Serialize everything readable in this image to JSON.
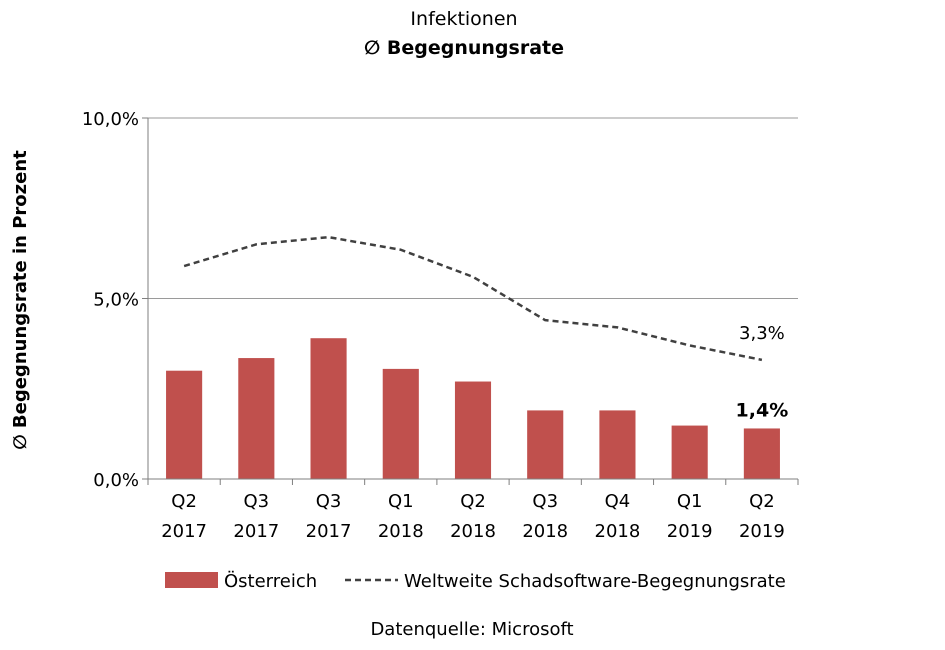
{
  "chart_data": {
    "type": "bar",
    "title": "Infektionen",
    "subtitle": "∅ Begegnungsrate",
    "ylabel": "∅ Begegnungsrate in Prozent",
    "xlabel": "",
    "ylim": [
      0,
      10
    ],
    "yticks": [
      "0,0%",
      "5,0%",
      "10,0%"
    ],
    "grid": true,
    "legend_position": "bottom",
    "categories": [
      [
        "Q2",
        "2017"
      ],
      [
        "Q3",
        "2017"
      ],
      [
        "Q3",
        "2017"
      ],
      [
        "Q1",
        "2018"
      ],
      [
        "Q2",
        "2018"
      ],
      [
        "Q3",
        "2018"
      ],
      [
        "Q4",
        "2018"
      ],
      [
        "Q1",
        "2019"
      ],
      [
        "Q2",
        "2019"
      ]
    ],
    "series": [
      {
        "name": "Österreich",
        "kind": "bar",
        "color": "#C0504D",
        "values": [
          3.0,
          3.35,
          3.9,
          3.05,
          2.7,
          1.9,
          1.9,
          1.48,
          1.4
        ],
        "last_label": "1,4%"
      },
      {
        "name": "Weltweite Schadsoftware-Begegnungsrate",
        "kind": "line",
        "style": "dashed",
        "color": "#404040",
        "values": [
          5.9,
          6.5,
          6.7,
          6.35,
          5.6,
          4.4,
          4.2,
          3.7,
          3.3
        ],
        "last_label": "3,3%"
      }
    ],
    "source": "Datenquelle: Microsoft"
  }
}
